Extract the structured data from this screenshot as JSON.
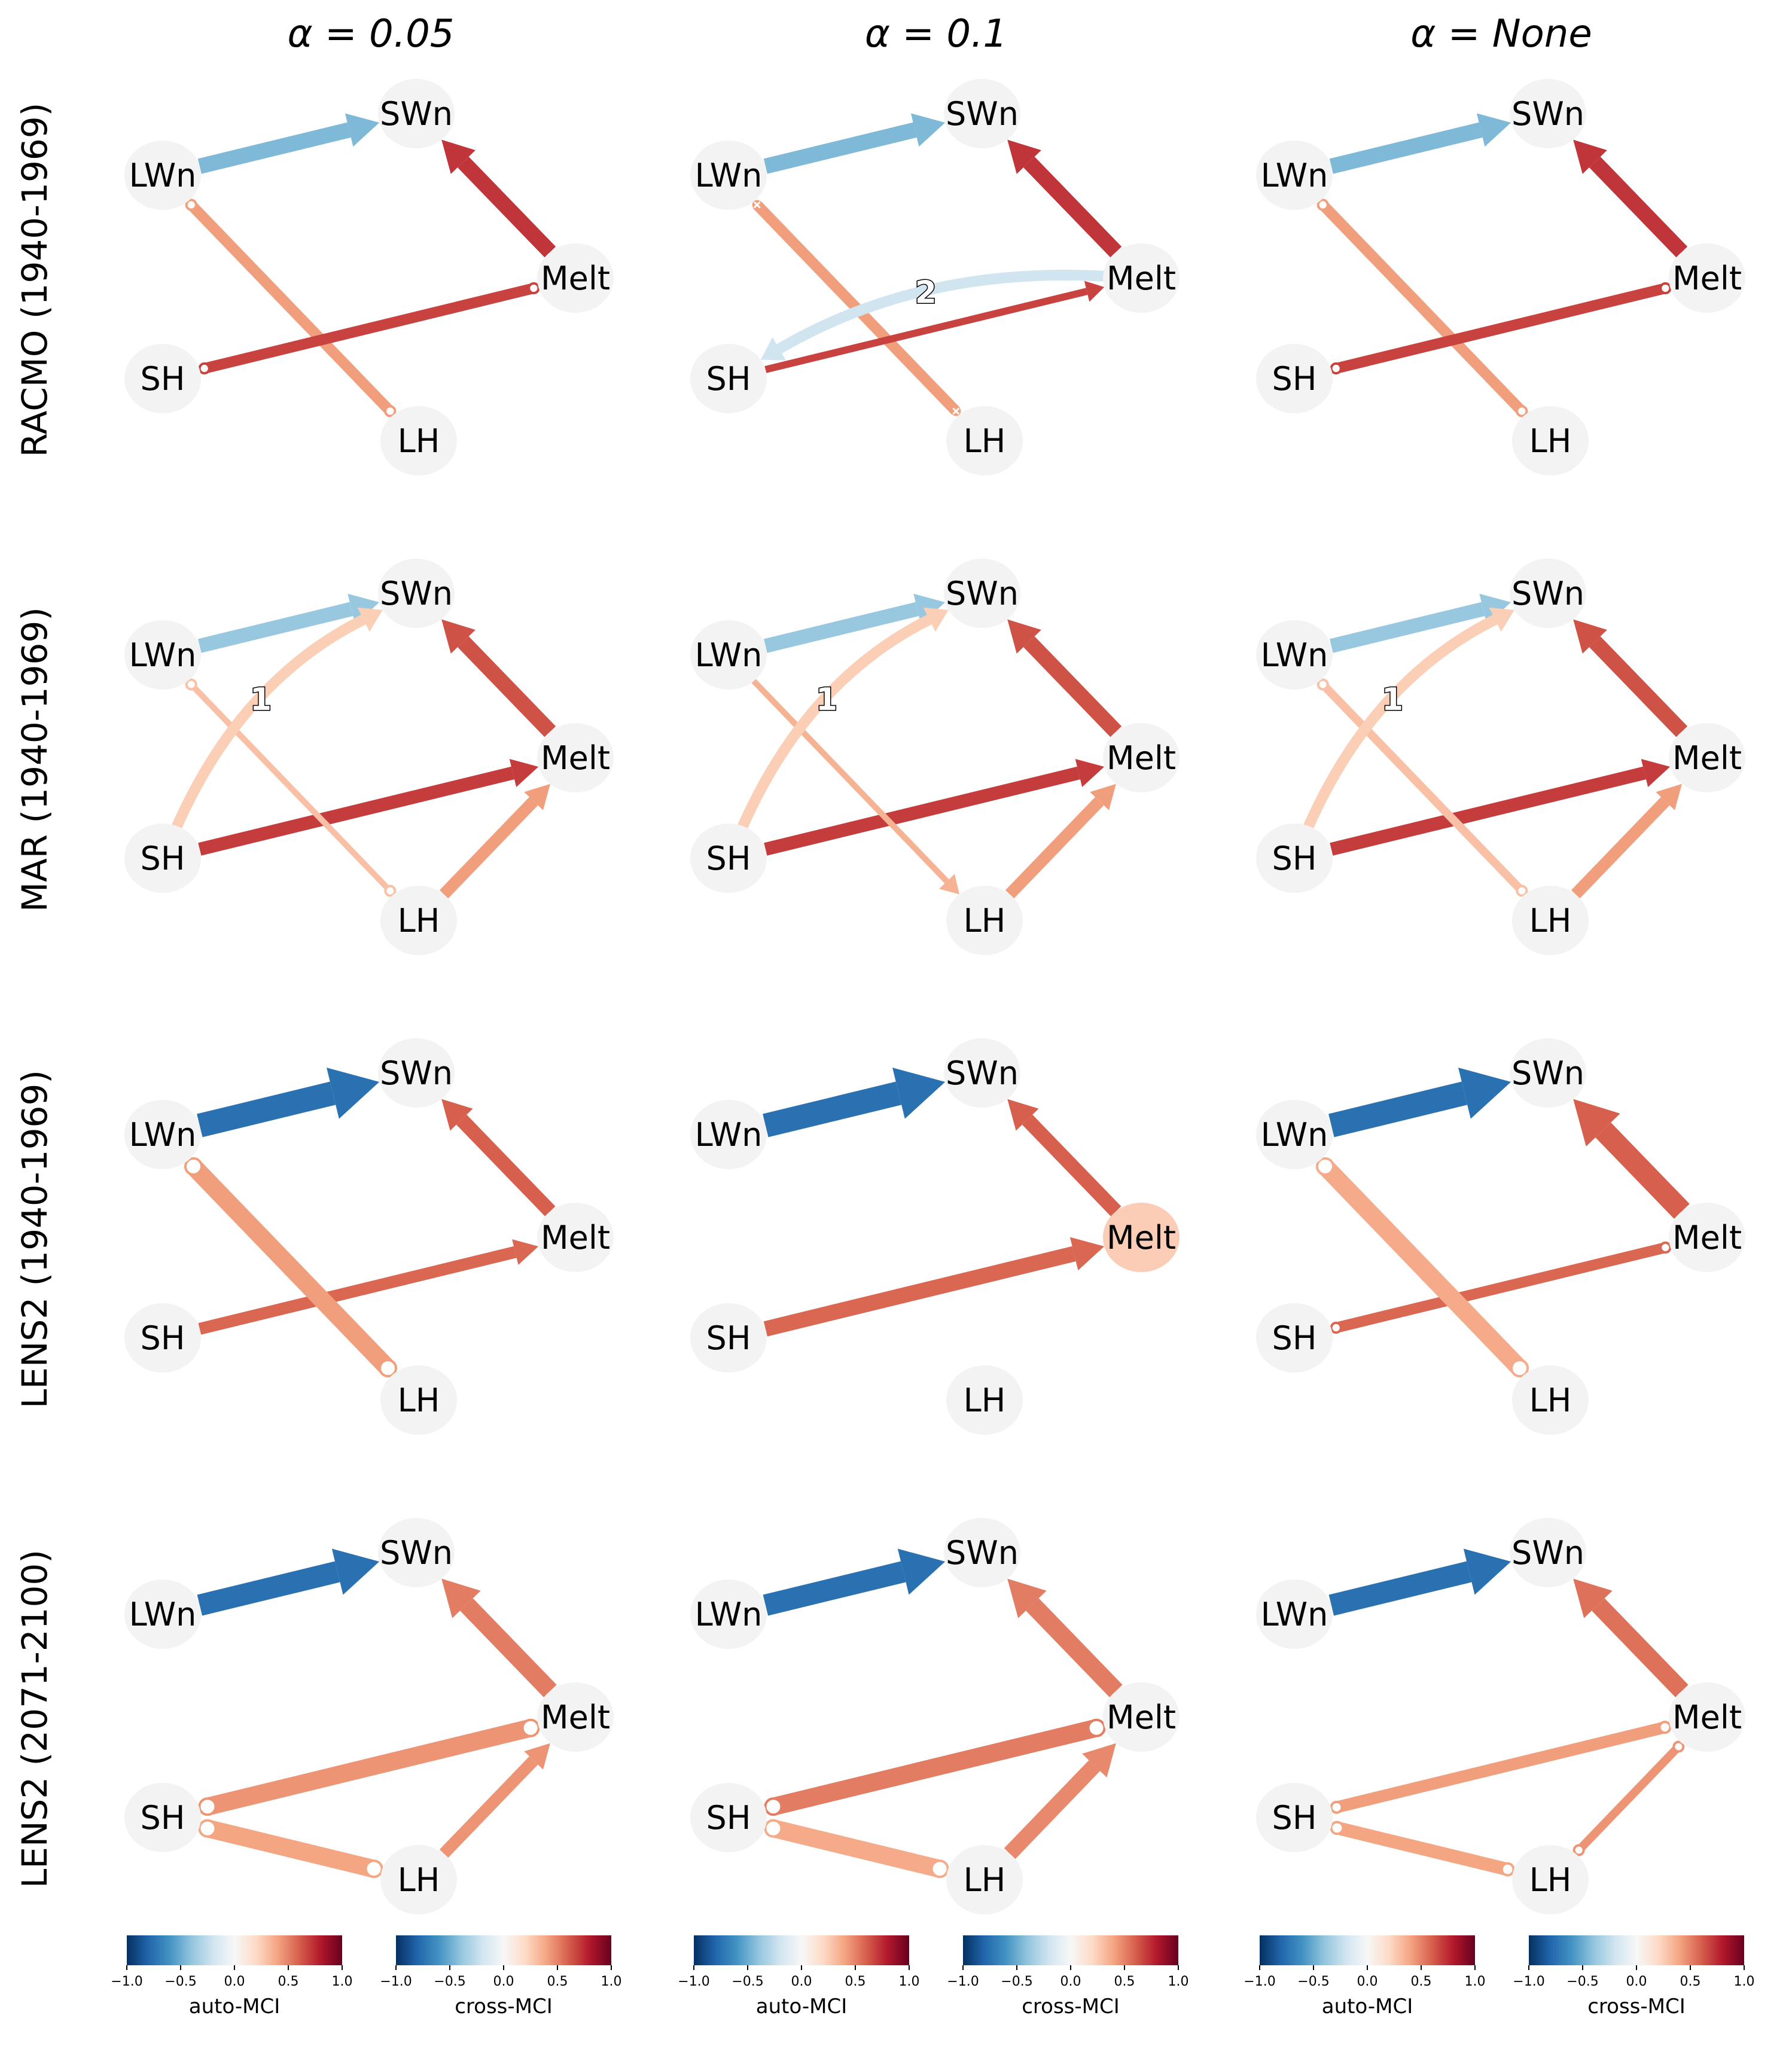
{
  "columns": [
    {
      "prefix": "α = ",
      "value": "0.05"
    },
    {
      "prefix": "α = ",
      "value": "0.1"
    },
    {
      "prefix": "α = ",
      "value": "None"
    }
  ],
  "rows": [
    {
      "label": "RACMO (1940-1969)"
    },
    {
      "label": "MAR (1940-1969)"
    },
    {
      "label": "LENS2 (1940-1969)"
    },
    {
      "label": "LENS2 (2071-2100)"
    }
  ],
  "nodes": [
    "SWn",
    "LWn",
    "Melt",
    "SH",
    "LH"
  ],
  "colorbars": {
    "ticks": [
      "−1.0",
      "−0.5",
      "0.0",
      "0.5",
      "1.0"
    ],
    "labels": [
      "auto-MCI",
      "cross-MCI"
    ]
  },
  "colors": {
    "node_fill": "#f3f3f3",
    "node_melt_highlight": "#fbcdb6",
    "cmap": [
      "#053061",
      "#2166ac",
      "#4393c3",
      "#92c5de",
      "#d1e5f0",
      "#f7f7f7",
      "#fddbc7",
      "#f4a582",
      "#d6604d",
      "#b2182b",
      "#67001f"
    ]
  },
  "panels": [
    [
      {
        "edges": [
          {
            "from": "LWn",
            "to": "SWn",
            "type": "directed",
            "value": -0.45,
            "width": 26
          },
          {
            "from": "Melt",
            "to": "SWn",
            "type": "directed",
            "value": 0.72,
            "width": 26
          },
          {
            "from": "LWn",
            "to": "LH",
            "type": "circle",
            "value": 0.42,
            "width": 18
          },
          {
            "from": "SH",
            "to": "Melt",
            "type": "circle",
            "value": 0.68,
            "width": 18
          }
        ]
      },
      {
        "edges": [
          {
            "from": "LWn",
            "to": "SWn",
            "type": "directed",
            "value": -0.45,
            "width": 26
          },
          {
            "from": "Melt",
            "to": "SWn",
            "type": "directed",
            "value": 0.72,
            "width": 26
          },
          {
            "from": "LWn",
            "to": "LH",
            "type": "cross",
            "value": 0.42,
            "width": 18
          },
          {
            "from": "SH",
            "to": "Melt",
            "type": "directed",
            "value": 0.68,
            "width": 12
          },
          {
            "from": "Melt",
            "to": "SH",
            "type": "directed",
            "value": -0.2,
            "width": 18,
            "curve": 0.15,
            "label": "2"
          }
        ]
      },
      {
        "edges": [
          {
            "from": "LWn",
            "to": "SWn",
            "type": "directed",
            "value": -0.45,
            "width": 26
          },
          {
            "from": "Melt",
            "to": "SWn",
            "type": "directed",
            "value": 0.72,
            "width": 26
          },
          {
            "from": "LWn",
            "to": "LH",
            "type": "circle",
            "value": 0.42,
            "width": 18
          },
          {
            "from": "SH",
            "to": "Melt",
            "type": "circle",
            "value": 0.68,
            "width": 18
          }
        ]
      }
    ],
    [
      {
        "edges": [
          {
            "from": "LWn",
            "to": "SWn",
            "type": "directed",
            "value": -0.38,
            "width": 24
          },
          {
            "from": "Melt",
            "to": "SWn",
            "type": "directed",
            "value": 0.64,
            "width": 26
          },
          {
            "from": "SH",
            "to": "Melt",
            "type": "directed",
            "value": 0.7,
            "width": 22
          },
          {
            "from": "LH",
            "to": "Melt",
            "type": "directed",
            "value": 0.42,
            "width": 20
          },
          {
            "from": "LWn",
            "to": "LH",
            "type": "circle",
            "value": 0.3,
            "width": 10
          },
          {
            "from": "SH",
            "to": "SWn",
            "type": "directed",
            "value": 0.25,
            "width": 18,
            "curve": -0.18,
            "label": "1"
          }
        ]
      },
      {
        "edges": [
          {
            "from": "LWn",
            "to": "SWn",
            "type": "directed",
            "value": -0.38,
            "width": 24
          },
          {
            "from": "Melt",
            "to": "SWn",
            "type": "directed",
            "value": 0.64,
            "width": 26
          },
          {
            "from": "SH",
            "to": "Melt",
            "type": "directed",
            "value": 0.7,
            "width": 22
          },
          {
            "from": "LH",
            "to": "Melt",
            "type": "directed",
            "value": 0.42,
            "width": 20
          },
          {
            "from": "LWn",
            "to": "LH",
            "type": "directed",
            "value": 0.35,
            "width": 10
          },
          {
            "from": "SH",
            "to": "SWn",
            "type": "directed",
            "value": 0.25,
            "width": 18,
            "curve": -0.18,
            "label": "1"
          }
        ]
      },
      {
        "edges": [
          {
            "from": "LWn",
            "to": "SWn",
            "type": "directed",
            "value": -0.38,
            "width": 24
          },
          {
            "from": "Melt",
            "to": "SWn",
            "type": "directed",
            "value": 0.64,
            "width": 26
          },
          {
            "from": "SH",
            "to": "Melt",
            "type": "directed",
            "value": 0.7,
            "width": 22
          },
          {
            "from": "LH",
            "to": "Melt",
            "type": "directed",
            "value": 0.42,
            "width": 20
          },
          {
            "from": "LWn",
            "to": "LH",
            "type": "circle",
            "value": 0.3,
            "width": 14
          },
          {
            "from": "SH",
            "to": "SWn",
            "type": "directed",
            "value": 0.25,
            "width": 18,
            "curve": -0.18,
            "label": "1"
          }
        ]
      }
    ],
    [
      {
        "edges": [
          {
            "from": "LWn",
            "to": "SWn",
            "type": "directed",
            "value": -0.75,
            "width": 40
          },
          {
            "from": "Melt",
            "to": "SWn",
            "type": "directed",
            "value": 0.6,
            "width": 24
          },
          {
            "from": "SH",
            "to": "Melt",
            "type": "directed",
            "value": 0.58,
            "width": 20
          },
          {
            "from": "LWn",
            "to": "LH",
            "type": "circle",
            "value": 0.42,
            "width": 30
          }
        ]
      },
      {
        "highlight": "Melt",
        "edges": [
          {
            "from": "LWn",
            "to": "SWn",
            "type": "directed",
            "value": -0.75,
            "width": 40
          },
          {
            "from": "Melt",
            "to": "SWn",
            "type": "directed",
            "value": 0.6,
            "width": 24
          },
          {
            "from": "SH",
            "to": "Melt",
            "type": "directed",
            "value": 0.58,
            "width": 26
          }
        ]
      },
      {
        "edges": [
          {
            "from": "LWn",
            "to": "SWn",
            "type": "directed",
            "value": -0.75,
            "width": 40
          },
          {
            "from": "Melt",
            "to": "SWn",
            "type": "directed",
            "value": 0.6,
            "width": 36
          },
          {
            "from": "SH",
            "to": "Melt",
            "type": "circle",
            "value": 0.58,
            "width": 18
          },
          {
            "from": "LWn",
            "to": "LH",
            "type": "circle",
            "value": 0.38,
            "width": 30
          }
        ]
      }
    ],
    [
      {
        "edges": [
          {
            "from": "LWn",
            "to": "SWn",
            "type": "directed",
            "value": -0.75,
            "width": 36
          },
          {
            "from": "Melt",
            "to": "SWn",
            "type": "directed",
            "value": 0.52,
            "width": 30
          },
          {
            "from": "SH",
            "to": "Melt",
            "type": "circle",
            "value": 0.45,
            "width": 30
          },
          {
            "from": "SH",
            "to": "LH",
            "type": "circle",
            "value": 0.4,
            "width": 30
          },
          {
            "from": "LH",
            "to": "Melt",
            "type": "directed",
            "value": 0.45,
            "width": 20
          }
        ]
      },
      {
        "edges": [
          {
            "from": "LWn",
            "to": "SWn",
            "type": "directed",
            "value": -0.75,
            "width": 36
          },
          {
            "from": "Melt",
            "to": "SWn",
            "type": "directed",
            "value": 0.52,
            "width": 30
          },
          {
            "from": "SH",
            "to": "Melt",
            "type": "circle",
            "value": 0.52,
            "width": 30
          },
          {
            "from": "SH",
            "to": "LH",
            "type": "circle",
            "value": 0.38,
            "width": 30
          },
          {
            "from": "LH",
            "to": "Melt",
            "type": "directed",
            "value": 0.48,
            "width": 26
          }
        ]
      },
      {
        "edges": [
          {
            "from": "LWn",
            "to": "SWn",
            "type": "directed",
            "value": -0.75,
            "width": 36
          },
          {
            "from": "Melt",
            "to": "SWn",
            "type": "directed",
            "value": 0.55,
            "width": 30
          },
          {
            "from": "SH",
            "to": "Melt",
            "type": "circle",
            "value": 0.42,
            "width": 20
          },
          {
            "from": "SH",
            "to": "LH",
            "type": "circle",
            "value": 0.4,
            "width": 22
          },
          {
            "from": "LH",
            "to": "Melt",
            "type": "circle",
            "value": 0.45,
            "width": 14
          }
        ]
      }
    ]
  ]
}
